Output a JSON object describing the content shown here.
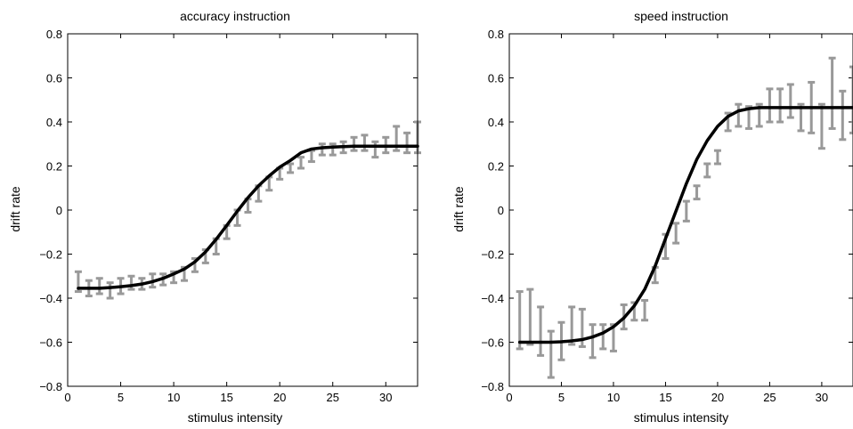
{
  "colors": {
    "fit_line": "#000000",
    "error_bars": "#999999",
    "axes": "#000000",
    "background": "#ffffff"
  },
  "chart_data": [
    {
      "type": "line",
      "title": "accuracy instruction",
      "xlabel": "stimulus intensity",
      "ylabel": "drift rate",
      "xlim": [
        0,
        33
      ],
      "ylim": [
        -0.8,
        0.8
      ],
      "xticks": [
        0,
        5,
        10,
        15,
        20,
        25,
        30
      ],
      "yticks": [
        -0.8,
        -0.6,
        -0.4,
        -0.2,
        0,
        0.2,
        0.4,
        0.6,
        0.8
      ],
      "xtick_labels": [
        "0",
        "5",
        "10",
        "15",
        "20",
        "25",
        "30"
      ],
      "ytick_labels": [
        "−0.8",
        "−0.6",
        "−0.4",
        "−0.2",
        "0",
        "0.2",
        "0.4",
        "0.6",
        "0.8"
      ],
      "grid": false,
      "legend": "none",
      "error_bars": {
        "x": [
          1,
          2,
          3,
          4,
          5,
          6,
          7,
          8,
          9,
          10,
          11,
          12,
          13,
          14,
          15,
          16,
          17,
          18,
          19,
          20,
          21,
          22,
          23,
          24,
          25,
          26,
          27,
          28,
          29,
          30,
          31,
          32,
          33
        ],
        "lower": [
          -0.37,
          -0.39,
          -0.38,
          -0.4,
          -0.38,
          -0.36,
          -0.36,
          -0.35,
          -0.34,
          -0.33,
          -0.32,
          -0.28,
          -0.24,
          -0.2,
          -0.13,
          -0.07,
          -0.01,
          0.04,
          0.09,
          0.14,
          0.17,
          0.19,
          0.22,
          0.25,
          0.25,
          0.26,
          0.27,
          0.27,
          0.24,
          0.26,
          0.27,
          0.26,
          0.26
        ],
        "upper": [
          -0.28,
          -0.32,
          -0.31,
          -0.33,
          -0.31,
          -0.3,
          -0.31,
          -0.29,
          -0.29,
          -0.28,
          -0.26,
          -0.22,
          -0.18,
          -0.13,
          -0.07,
          0.0,
          0.05,
          0.11,
          0.15,
          0.19,
          0.21,
          0.24,
          0.27,
          0.3,
          0.3,
          0.31,
          0.33,
          0.34,
          0.31,
          0.33,
          0.38,
          0.35,
          0.4
        ]
      },
      "fit": {
        "x": [
          1,
          2,
          3,
          4,
          5,
          6,
          7,
          8,
          9,
          10,
          11,
          12,
          13,
          14,
          15,
          16,
          17,
          18,
          19,
          20,
          21,
          22,
          23,
          24,
          25,
          26,
          27,
          28,
          29,
          30,
          31,
          32,
          33
        ],
        "y": [
          -0.355,
          -0.355,
          -0.355,
          -0.352,
          -0.348,
          -0.343,
          -0.336,
          -0.325,
          -0.31,
          -0.29,
          -0.268,
          -0.235,
          -0.19,
          -0.133,
          -0.07,
          -0.005,
          0.056,
          0.11,
          0.155,
          0.195,
          0.225,
          0.26,
          0.277,
          0.283,
          0.286,
          0.288,
          0.29,
          0.29,
          0.29,
          0.29,
          0.29,
          0.29,
          0.29
        ]
      }
    },
    {
      "type": "line",
      "title": "speed instruction",
      "xlabel": "stimulus intensity",
      "ylabel": "drift rate",
      "xlim": [
        0,
        33
      ],
      "ylim": [
        -0.8,
        0.8
      ],
      "xticks": [
        0,
        5,
        10,
        15,
        20,
        25,
        30
      ],
      "yticks": [
        -0.8,
        -0.6,
        -0.4,
        -0.2,
        0,
        0.2,
        0.4,
        0.6,
        0.8
      ],
      "xtick_labels": [
        "0",
        "5",
        "10",
        "15",
        "20",
        "25",
        "30"
      ],
      "ytick_labels": [
        "−0.8",
        "−0.6",
        "−0.4",
        "−0.2",
        "0",
        "0.2",
        "0.4",
        "0.6",
        "0.8"
      ],
      "grid": false,
      "legend": "none",
      "error_bars": {
        "x": [
          1,
          2,
          3,
          4,
          5,
          6,
          7,
          8,
          9,
          10,
          11,
          12,
          13,
          14,
          15,
          16,
          17,
          18,
          19,
          20,
          21,
          22,
          23,
          24,
          25,
          26,
          27,
          28,
          29,
          30,
          31,
          32,
          33
        ],
        "lower": [
          -0.63,
          -0.61,
          -0.66,
          -0.76,
          -0.68,
          -0.61,
          -0.62,
          -0.67,
          -0.63,
          -0.64,
          -0.54,
          -0.5,
          -0.5,
          -0.33,
          -0.22,
          -0.15,
          -0.05,
          0.05,
          0.15,
          0.21,
          0.36,
          0.38,
          0.37,
          0.38,
          0.4,
          0.4,
          0.42,
          0.36,
          0.35,
          0.28,
          0.37,
          0.32,
          0.35
        ],
        "upper": [
          -0.37,
          -0.36,
          -0.44,
          -0.55,
          -0.51,
          -0.44,
          -0.45,
          -0.52,
          -0.52,
          -0.52,
          -0.43,
          -0.42,
          -0.41,
          -0.26,
          -0.11,
          -0.06,
          0.04,
          0.11,
          0.21,
          0.27,
          0.44,
          0.48,
          0.47,
          0.48,
          0.55,
          0.55,
          0.57,
          0.48,
          0.58,
          0.48,
          0.69,
          0.54,
          0.65
        ]
      },
      "fit": {
        "x": [
          1,
          2,
          3,
          4,
          5,
          6,
          7,
          8,
          9,
          10,
          11,
          12,
          13,
          14,
          15,
          16,
          17,
          18,
          19,
          20,
          21,
          22,
          23,
          24,
          25,
          26,
          27,
          28,
          29,
          30,
          31,
          32,
          33
        ],
        "y": [
          -0.6,
          -0.6,
          -0.6,
          -0.6,
          -0.598,
          -0.594,
          -0.588,
          -0.576,
          -0.558,
          -0.53,
          -0.49,
          -0.435,
          -0.36,
          -0.255,
          -0.13,
          -0.005,
          0.12,
          0.23,
          0.315,
          0.38,
          0.425,
          0.45,
          0.46,
          0.465,
          0.465,
          0.465,
          0.465,
          0.465,
          0.465,
          0.465,
          0.465,
          0.465,
          0.465
        ]
      }
    }
  ]
}
